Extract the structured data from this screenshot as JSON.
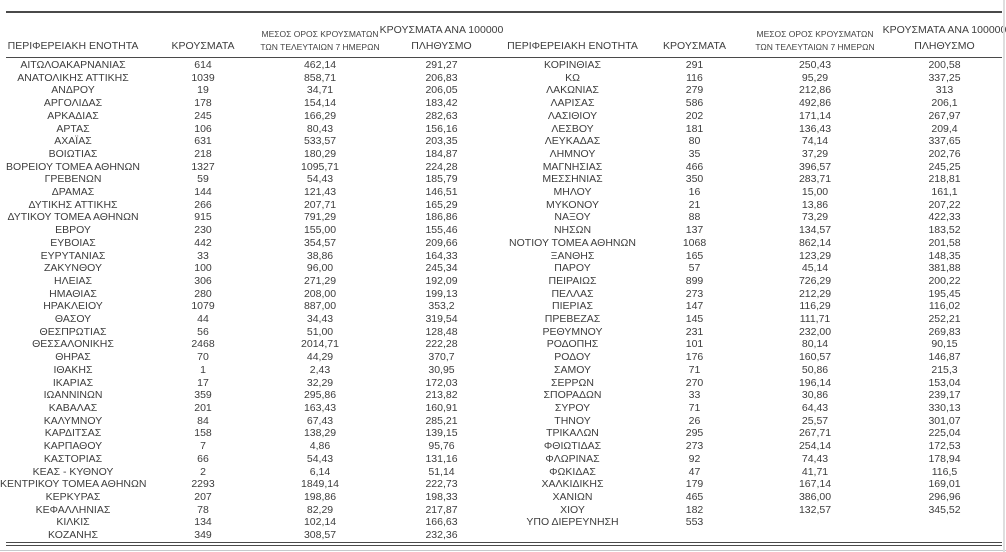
{
  "page": {
    "background_color": "#ffffff",
    "text_color": "#3d3d3d",
    "rule_color": "#4a4a4a",
    "edge_gray_color": "#c6cacd"
  },
  "table": {
    "header": {
      "region": "ΠΕΡΙΦΕΡΕΙΑΚΗ ΕΝΟΤΗΤΑ",
      "cases": "ΚΡΟΥΣΜΑΤΑ",
      "avg7_line1": "ΜΕΣΟΣ ΟΡΟΣ ΚΡΟΥΣΜΑΤΩΝ",
      "avg7_line2": "ΤΩΝ ΤΕΛΕΥΤΑΙΩΝ 7 ΗΜΕΡΩΝ",
      "per100k_line1": "ΚΡΟΥΣΜΑΤΑ ΑΝΑ 100000",
      "per100k_line2": "ΠΛΗΘΥΣΜΟ"
    },
    "left_rows": [
      [
        "ΑΙΤΩΛΟΑΚΑΡΝΑΝΙΑΣ",
        "614",
        "462,14",
        "291,27"
      ],
      [
        "ΑΝΑΤΟΛΙΚΗΣ ΑΤΤΙΚΗΣ",
        "1039",
        "858,71",
        "206,83"
      ],
      [
        "ΑΝΔΡΟΥ",
        "19",
        "34,71",
        "206,05"
      ],
      [
        "ΑΡΓΟΛΙΔΑΣ",
        "178",
        "154,14",
        "183,42"
      ],
      [
        "ΑΡΚΑΔΙΑΣ",
        "245",
        "166,29",
        "282,63"
      ],
      [
        "ΑΡΤΑΣ",
        "106",
        "80,43",
        "156,16"
      ],
      [
        "ΑΧΑΪΑΣ",
        "631",
        "533,57",
        "203,35"
      ],
      [
        "ΒΟΙΩΤΙΑΣ",
        "218",
        "180,29",
        "184,87"
      ],
      [
        "ΒΟΡΕΙΟΥ ΤΟΜΕΑ ΑΘΗΝΩΝ",
        "1327",
        "1095,71",
        "224,28"
      ],
      [
        "ΓΡΕΒΕΝΩΝ",
        "59",
        "54,43",
        "185,79"
      ],
      [
        "ΔΡΑΜΑΣ",
        "144",
        "121,43",
        "146,51"
      ],
      [
        "ΔΥΤΙΚΗΣ ΑΤΤΙΚΗΣ",
        "266",
        "207,71",
        "165,29"
      ],
      [
        "ΔΥΤΙΚΟΥ ΤΟΜΕΑ ΑΘΗΝΩΝ",
        "915",
        "791,29",
        "186,86"
      ],
      [
        "ΕΒΡΟΥ",
        "230",
        "155,00",
        "155,46"
      ],
      [
        "ΕΥΒΟΙΑΣ",
        "442",
        "354,57",
        "209,66"
      ],
      [
        "ΕΥΡΥΤΑΝΙΑΣ",
        "33",
        "38,86",
        "164,33"
      ],
      [
        "ΖΑΚΥΝΘΟΥ",
        "100",
        "96,00",
        "245,34"
      ],
      [
        "ΗΛΕΙΑΣ",
        "306",
        "271,29",
        "192,09"
      ],
      [
        "ΗΜΑΘΙΑΣ",
        "280",
        "208,00",
        "199,13"
      ],
      [
        "ΗΡΑΚΛΕΙΟΥ",
        "1079",
        "887,00",
        "353,2"
      ],
      [
        "ΘΑΣΟΥ",
        "44",
        "34,43",
        "319,54"
      ],
      [
        "ΘΕΣΠΡΩΤΙΑΣ",
        "56",
        "51,00",
        "128,48"
      ],
      [
        "ΘΕΣΣΑΛΟΝΙΚΗΣ",
        "2468",
        "2014,71",
        "222,28"
      ],
      [
        "ΘΗΡΑΣ",
        "70",
        "44,29",
        "370,7"
      ],
      [
        "ΙΘΑΚΗΣ",
        "1",
        "2,43",
        "30,95"
      ],
      [
        "ΙΚΑΡΙΑΣ",
        "17",
        "32,29",
        "172,03"
      ],
      [
        "ΙΩΑΝΝΙΝΩΝ",
        "359",
        "295,86",
        "213,82"
      ],
      [
        "ΚΑΒΑΛΑΣ",
        "201",
        "163,43",
        "160,91"
      ],
      [
        "ΚΑΛΥΜΝΟΥ",
        "84",
        "67,43",
        "285,21"
      ],
      [
        "ΚΑΡΔΙΤΣΑΣ",
        "158",
        "138,29",
        "139,15"
      ],
      [
        "ΚΑΡΠΑΘΟΥ",
        "7",
        "4,86",
        "95,76"
      ],
      [
        "ΚΑΣΤΟΡΙΑΣ",
        "66",
        "54,43",
        "131,16"
      ],
      [
        "ΚΕΑΣ - ΚΥΘΝΟΥ",
        "2",
        "6,14",
        "51,14"
      ],
      [
        "ΚΕΝΤΡΙΚΟΥ ΤΟΜΕΑ ΑΘΗΝΩΝ",
        "2293",
        "1849,14",
        "222,73"
      ],
      [
        "ΚΕΡΚΥΡΑΣ",
        "207",
        "198,86",
        "198,33"
      ],
      [
        "ΚΕΦΑΛΛΗΝΙΑΣ",
        "78",
        "82,29",
        "217,87"
      ],
      [
        "ΚΙΛΚΙΣ",
        "134",
        "102,14",
        "166,63"
      ],
      [
        "ΚΟΖΑΝΗΣ",
        "349",
        "308,57",
        "232,36"
      ]
    ],
    "right_rows": [
      [
        "ΚΟΡΙΝΘΙΑΣ",
        "291",
        "250,43",
        "200,58"
      ],
      [
        "ΚΩ",
        "116",
        "95,29",
        "337,25"
      ],
      [
        "ΛΑΚΩΝΙΑΣ",
        "279",
        "212,86",
        "313"
      ],
      [
        "ΛΑΡΙΣΑΣ",
        "586",
        "492,86",
        "206,1"
      ],
      [
        "ΛΑΣΙΘΙΟΥ",
        "202",
        "171,14",
        "267,97"
      ],
      [
        "ΛΕΣΒΟΥ",
        "181",
        "136,43",
        "209,4"
      ],
      [
        "ΛΕΥΚΑΔΑΣ",
        "80",
        "74,14",
        "337,65"
      ],
      [
        "ΛΗΜΝΟΥ",
        "35",
        "37,29",
        "202,76"
      ],
      [
        "ΜΑΓΝΗΣΙΑΣ",
        "466",
        "396,57",
        "245,25"
      ],
      [
        "ΜΕΣΣΗΝΙΑΣ",
        "350",
        "283,71",
        "218,81"
      ],
      [
        "ΜΗΛΟΥ",
        "16",
        "15,00",
        "161,1"
      ],
      [
        "ΜΥΚΟΝΟΥ",
        "21",
        "13,86",
        "207,22"
      ],
      [
        "ΝΑΞΟΥ",
        "88",
        "73,29",
        "422,33"
      ],
      [
        "ΝΗΣΩΝ",
        "137",
        "134,57",
        "183,52"
      ],
      [
        "ΝΟΤΙΟΥ ΤΟΜΕΑ ΑΘΗΝΩΝ",
        "1068",
        "862,14",
        "201,58"
      ],
      [
        "ΞΑΝΘΗΣ",
        "165",
        "123,29",
        "148,35"
      ],
      [
        "ΠΑΡΟΥ",
        "57",
        "45,14",
        "381,88"
      ],
      [
        "ΠΕΙΡΑΙΩΣ",
        "899",
        "726,29",
        "200,22"
      ],
      [
        "ΠΕΛΛΑΣ",
        "273",
        "212,29",
        "195,45"
      ],
      [
        "ΠΙΕΡΙΑΣ",
        "147",
        "116,29",
        "116,02"
      ],
      [
        "ΠΡΕΒΕΖΑΣ",
        "145",
        "111,71",
        "252,21"
      ],
      [
        "ΡΕΘΥΜΝΟΥ",
        "231",
        "232,00",
        "269,83"
      ],
      [
        "ΡΟΔΟΠΗΣ",
        "101",
        "80,14",
        "90,15"
      ],
      [
        "ΡΟΔΟΥ",
        "176",
        "160,57",
        "146,87"
      ],
      [
        "ΣΑΜΟΥ",
        "71",
        "50,86",
        "215,3"
      ],
      [
        "ΣΕΡΡΩΝ",
        "270",
        "196,14",
        "153,04"
      ],
      [
        "ΣΠΟΡΑΔΩΝ",
        "33",
        "30,86",
        "239,17"
      ],
      [
        "ΣΥΡΟΥ",
        "71",
        "64,43",
        "330,13"
      ],
      [
        "ΤΗΝΟΥ",
        "26",
        "25,57",
        "301,07"
      ],
      [
        "ΤΡΙΚΑΛΩΝ",
        "295",
        "267,71",
        "225,04"
      ],
      [
        "ΦΘΙΩΤΙΔΑΣ",
        "273",
        "254,14",
        "172,53"
      ],
      [
        "ΦΛΩΡΙΝΑΣ",
        "92",
        "74,43",
        "178,94"
      ],
      [
        "ΦΩΚΙΔΑΣ",
        "47",
        "41,71",
        "116,5"
      ],
      [
        "ΧΑΛΚΙΔΙΚΗΣ",
        "179",
        "167,14",
        "169,01"
      ],
      [
        "ΧΑΝΙΩΝ",
        "465",
        "386,00",
        "296,96"
      ],
      [
        "ΧΙΟΥ",
        "182",
        "132,57",
        "345,52"
      ],
      [
        "ΥΠΟ ΔΙΕΡΕΥΝΗΣΗ",
        "553",
        "",
        ""
      ]
    ]
  }
}
